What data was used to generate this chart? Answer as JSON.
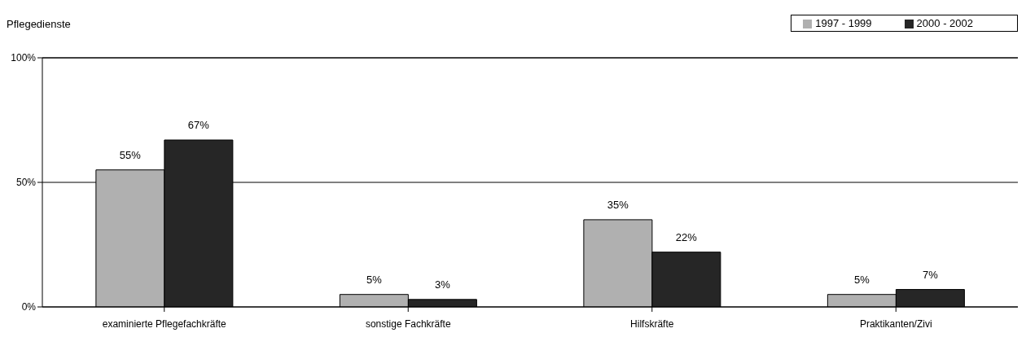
{
  "chart_data": {
    "type": "bar",
    "title": "Pflegedienste",
    "categories": [
      "examinierte Pflegefachkräfte",
      "sonstige Fachkräfte",
      "Hilfskräfte",
      "Praktikanten/Zivi"
    ],
    "series": [
      {
        "name": "1997 - 1999",
        "color": "#b0b0b0",
        "values": [
          55,
          5,
          35,
          5
        ],
        "value_labels": [
          "55%",
          "5%",
          "35%",
          "5%"
        ]
      },
      {
        "name": "2000 - 2002",
        "color": "#262626",
        "values": [
          67,
          3,
          22,
          7
        ],
        "value_labels": [
          "67%",
          "3%",
          "22%",
          "7%"
        ]
      }
    ],
    "ylim": [
      0,
      100
    ],
    "yticks": [
      {
        "value": 0,
        "label": "0%"
      },
      {
        "value": 50,
        "label": "50%"
      },
      {
        "value": 100,
        "label": "100%"
      }
    ],
    "grid": "y",
    "legend": "top right"
  }
}
